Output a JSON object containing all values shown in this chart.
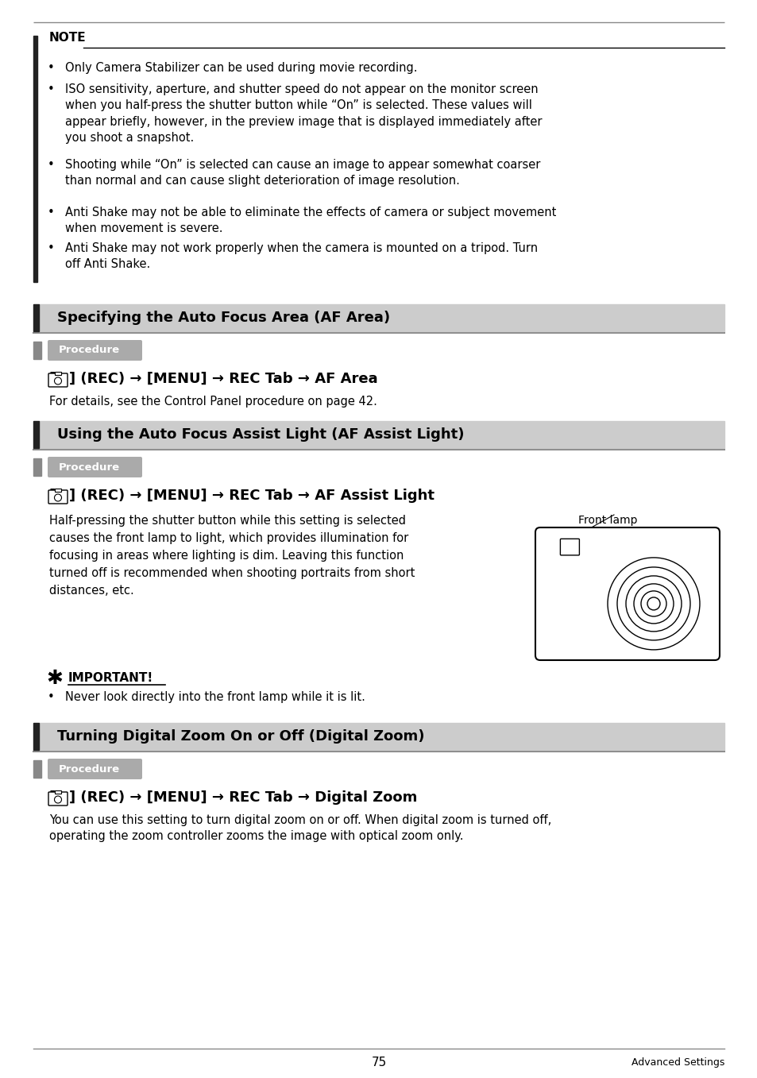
{
  "bg_color": "#ffffff",
  "footer_page_num": "75",
  "footer_right_text": "Advanced Settings",
  "note_bullets": [
    "Only Camera Stabilizer can be used during movie recording.",
    "ISO sensitivity, aperture, and shutter speed do not appear on the monitor screen\nwhen you half-press the shutter button while “On” is selected. These values will\nappear briefly, however, in the preview image that is displayed immediately after\nyou shoot a snapshot.",
    "Shooting while “On” is selected can cause an image to appear somewhat coarser\nthan normal and can cause slight deterioration of image resolution.",
    "Anti Shake may not be able to eliminate the effects of camera or subject movement\nwhen movement is severe.",
    "Anti Shake may not work properly when the camera is mounted on a tripod. Turn\noff Anti Shake."
  ],
  "section1_title": "Specifying the Auto Focus Area (AF Area)",
  "section2_title": "Using the Auto Focus Assist Light (AF Assist Light)",
  "section3_title": "Turning Digital Zoom On or Off (Digital Zoom)",
  "procedure_text": "Procedure",
  "cmd1_text": "[■] (REC) → [MENU] → REC Tab → AF Area",
  "cmd2_text": "[■] (REC) → [MENU] → REC Tab → AF Assist Light",
  "cmd3_text": "[■] (REC) → [MENU] → REC Tab → Digital Zoom",
  "detail1_text": "For details, see the Control Panel procedure on page 42.",
  "assist_body_line1": "Half-pressing the shutter button while this setting is selected",
  "assist_body_line2": "causes the front lamp to light, which provides illumination for",
  "assist_body_line3": "focusing in areas where lighting is dim. Leaving this function",
  "assist_body_line4": "turned off is recommended when shooting portraits from short",
  "assist_body_line5": "distances, etc.",
  "front_lamp_label": "Front lamp",
  "important_text": "IMPORTANT!",
  "important_bullet": "Never look directly into the front lamp while it is lit.",
  "digital_zoom_body": "You can use this setting to turn digital zoom on or off. When digital zoom is turned off,\noperating the zoom controller zooms the image with optical zoom only."
}
